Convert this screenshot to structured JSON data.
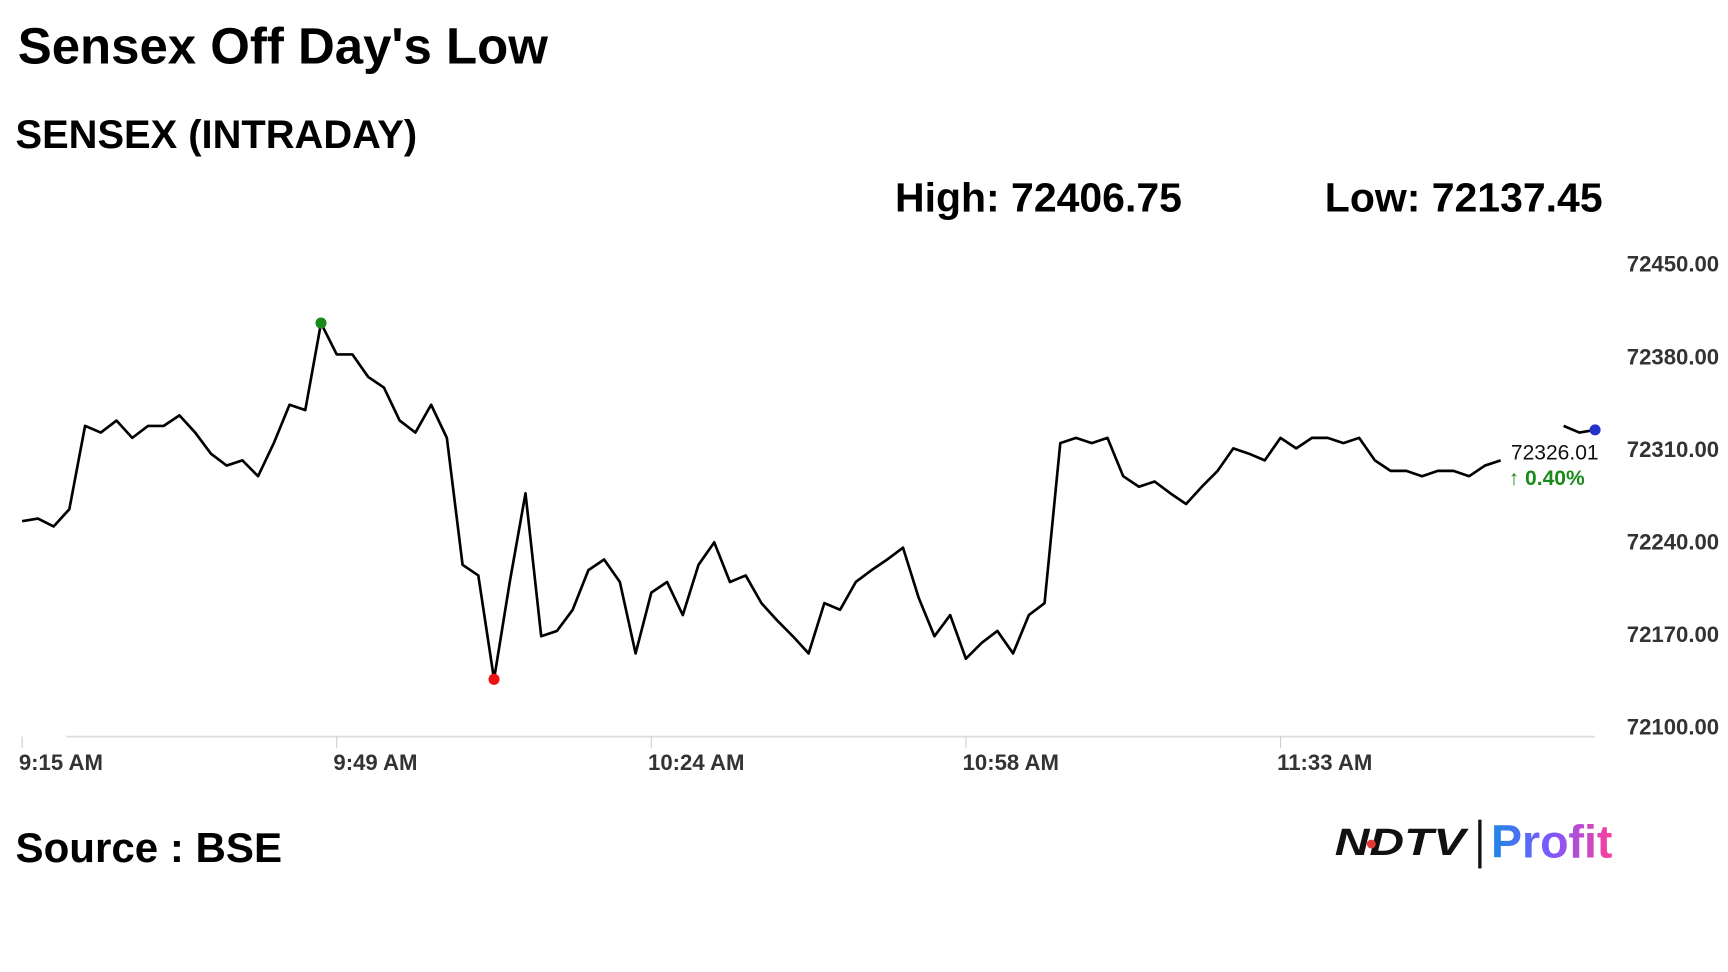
{
  "chart_data": {
    "type": "line",
    "title": "Sensex Off Day's Low",
    "subtitle": "SENSEX (INTRADAY)",
    "high_label": "High: 72406.75",
    "low_label": "Low: 72137.45",
    "last_label": "72326.01",
    "change_label": "↑ 0.40%",
    "source": "Source : BSE",
    "categories": [
      "9:15 AM",
      null,
      null,
      null,
      null,
      null,
      null,
      null,
      null,
      null,
      null,
      null,
      null,
      null,
      null,
      null,
      null,
      null,
      null,
      null,
      "9:49 AM",
      null,
      null,
      null,
      null,
      null,
      null,
      null,
      null,
      null,
      null,
      null,
      null,
      null,
      null,
      null,
      null,
      null,
      null,
      null,
      "10:24 AM",
      null,
      null,
      null,
      null,
      null,
      null,
      null,
      null,
      null,
      null,
      null,
      null,
      null,
      null,
      null,
      null,
      null,
      null,
      null,
      "10:58 AM",
      null,
      null,
      null,
      null,
      null,
      null,
      null,
      null,
      null,
      null,
      null,
      null,
      null,
      null,
      null,
      null,
      null,
      null,
      null,
      "11:33 AM",
      null,
      null,
      null,
      null,
      null,
      null,
      null,
      null,
      null,
      null,
      null,
      null,
      null,
      null,
      null,
      null,
      null,
      null,
      null,
      null
    ],
    "series": [
      {
        "name": "SENSEX",
        "color": "#000000",
        "values": [
          72257,
          72259,
          72253,
          72266,
          72329,
          72324,
          72333,
          72320,
          72329,
          72329,
          72337,
          72324,
          72308,
          72299,
          72303,
          72291,
          72316,
          72345,
          72341,
          72406.75,
          72383,
          72383,
          72366,
          72358,
          72333,
          72324,
          72345,
          72320,
          72224,
          72216,
          72137.45,
          72211,
          72278,
          72170,
          72174,
          72190,
          72220,
          72228,
          72211,
          72157,
          72203,
          72211,
          72186,
          72224,
          72241,
          72211,
          72216,
          72195,
          72182,
          72170,
          72157,
          72195,
          72190,
          72211,
          72220,
          72228,
          72237,
          72199,
          72170,
          72186,
          72153,
          72165,
          72174,
          72157,
          72186,
          72195,
          72316,
          72320,
          72316,
          72320,
          72291,
          72283,
          72287,
          72278,
          72270,
          72283,
          72295,
          72312,
          72308,
          72303,
          72320,
          72312,
          72320,
          72320,
          72316,
          72320,
          72303,
          72295,
          72295,
          72291,
          72295,
          72295,
          72291,
          72299,
          72303,
          null,
          null,
          null,
          72329,
          72324,
          72326.01
        ]
      }
    ],
    "high_color": "#1a8a1a",
    "low_color": "#ee1111",
    "last_color": "#2233cc",
    "change_color": "#1a8a1a",
    "ylim": [
      72100,
      72450
    ],
    "yticks": [
      {
        "value": 72100,
        "label": "72100.00"
      },
      {
        "value": 72170,
        "label": "72170.00"
      },
      {
        "value": 72240,
        "label": "72240.00"
      },
      {
        "value": 72310,
        "label": "72310.00"
      },
      {
        "value": 72380,
        "label": "72380.00"
      },
      {
        "value": 72450,
        "label": "72450.00"
      }
    ],
    "grid": false
  },
  "branding": {
    "logo_left": "NDTV",
    "logo_right": "Profit"
  }
}
